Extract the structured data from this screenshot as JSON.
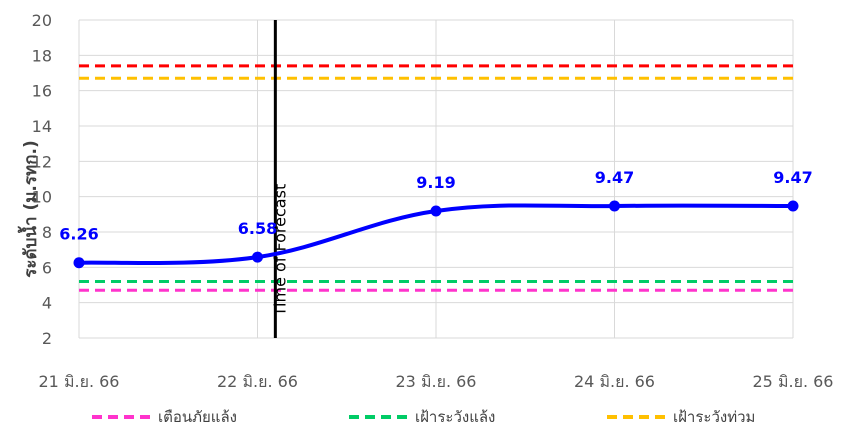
{
  "chart_data": {
    "type": "line",
    "title": "",
    "xlabel": "",
    "ylabel": "ระดับน้ำ (ม.รทก.)",
    "ylim": [
      2,
      20
    ],
    "yticks": [
      2,
      4,
      6,
      8,
      10,
      12,
      14,
      16,
      18,
      20
    ],
    "categories": [
      "21 มิ.ย. 66",
      "22 มิ.ย. 66",
      "23 มิ.ย. 66",
      "24 มิ.ย. 66",
      "25 มิ.ย. 66"
    ],
    "series": [
      {
        "x": [
          0,
          1,
          2,
          3,
          4
        ],
        "values": [
          6.26,
          6.58,
          9.19,
          9.47,
          9.47
        ],
        "labels": [
          "6.26",
          "6.58",
          "9.19",
          "9.47",
          "9.47"
        ],
        "color": "#0000ff"
      }
    ],
    "thresholds": [
      {
        "name": "เตือนภัยแล้ง",
        "value": 4.7,
        "color": "#ff33cc"
      },
      {
        "name": "เฝ้าระวังแล้ง",
        "value": 5.2,
        "color": "#00cc66"
      },
      {
        "name": "เฝ้าระวังท่วม",
        "value": 16.7,
        "color": "#ffc000"
      },
      {
        "name": "",
        "value": 17.4,
        "color": "#ff0000"
      }
    ],
    "forecast_line": {
      "x": 1.1,
      "label": "Time of Forecast"
    },
    "grid": true,
    "legend_position": "bottom"
  }
}
